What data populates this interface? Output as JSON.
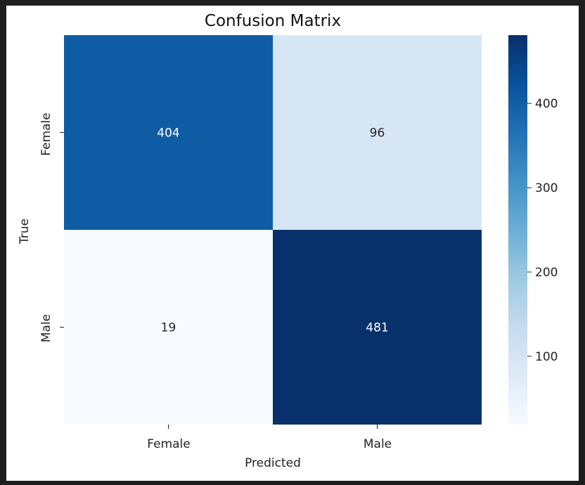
{
  "chart_data": {
    "type": "heatmap",
    "title": "Confusion Matrix",
    "xlabel": "Predicted",
    "ylabel": "True",
    "x_categories": [
      "Female",
      "Male"
    ],
    "y_categories": [
      "Female",
      "Male"
    ],
    "values": [
      [
        404,
        96
      ],
      [
        19,
        481
      ]
    ],
    "colormap": "Blues",
    "colorbar": {
      "vmin": 19,
      "vmax": 481,
      "ticks": [
        100,
        200,
        300,
        400
      ],
      "tick_labels": [
        "100",
        "200",
        "300",
        "400"
      ]
    },
    "annotations": true,
    "grid": false
  }
}
